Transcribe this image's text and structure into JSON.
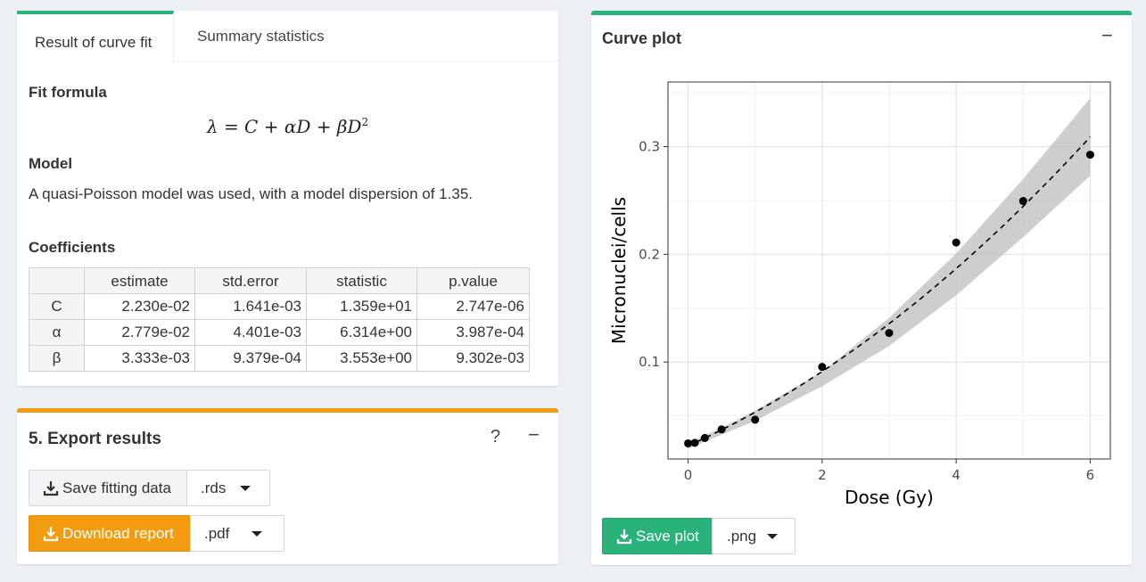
{
  "fit_panel": {
    "tabs": [
      {
        "label": "Result of curve fit",
        "active": true
      },
      {
        "label": "Summary statistics",
        "active": false
      }
    ],
    "fit_formula_title": "Fit formula",
    "formula": {
      "lhs": "λ = C + αD + βD",
      "exp": "2"
    },
    "model_title": "Model",
    "model_text": "A quasi-Poisson model was used, with a model dispersion of 1.35.",
    "coefficients_title": "Coefficients",
    "table": {
      "headers": [
        "",
        "estimate",
        "std.error",
        "statistic",
        "p.value"
      ],
      "rows": [
        [
          "C",
          "2.230e-02",
          "1.641e-03",
          "1.359e+01",
          "2.747e-06"
        ],
        [
          "α",
          "2.779e-02",
          "4.401e-03",
          "6.314e+00",
          "3.987e-04"
        ],
        [
          "β",
          "3.333e-03",
          "9.379e-04",
          "3.553e+00",
          "9.302e-03"
        ]
      ]
    }
  },
  "export_panel": {
    "title": "5. Export results",
    "help_label": "?",
    "collapse_label": "−",
    "save_fitting_label": "Save fitting data",
    "save_fitting_format": ".rds",
    "download_report_label": "Download report",
    "download_report_format": ".pdf",
    "accent_color": "#f39c12"
  },
  "plot_panel": {
    "title": "Curve plot",
    "collapse_label": "−",
    "save_plot_label": "Save plot",
    "save_plot_format": ".png",
    "accent_color": "#2ab27b"
  },
  "chart_data": {
    "type": "scatter",
    "xlabel": "Dose (Gy)",
    "ylabel": "Micronuclei/cells",
    "xlim": [
      -0.3,
      6.3
    ],
    "ylim": [
      0.01,
      0.36
    ],
    "xticks": [
      0,
      2,
      4,
      6
    ],
    "yticks": [
      0.1,
      0.2,
      0.3
    ],
    "ytick_labels": [
      "0.1",
      "0.2",
      "0.3"
    ],
    "grid": true,
    "points": {
      "x": [
        0,
        0.1,
        0.25,
        0.5,
        1,
        2,
        3,
        4,
        5,
        6
      ],
      "y": [
        0.0245,
        0.025,
        0.0295,
        0.0375,
        0.0465,
        0.0955,
        0.127,
        0.211,
        0.2495,
        0.2925
      ]
    },
    "fit_curve": {
      "C": 0.0223,
      "alpha": 0.02779,
      "beta": 0.003333,
      "style": "dashed"
    },
    "confidence_band": {
      "x": [
        0,
        0.5,
        1,
        2,
        3,
        4,
        5,
        6
      ],
      "lower": [
        0.0195,
        0.0325,
        0.0455,
        0.0775,
        0.115,
        0.162,
        0.216,
        0.273
      ],
      "upper": [
        0.025,
        0.039,
        0.055,
        0.091,
        0.141,
        0.201,
        0.27,
        0.345
      ]
    }
  }
}
